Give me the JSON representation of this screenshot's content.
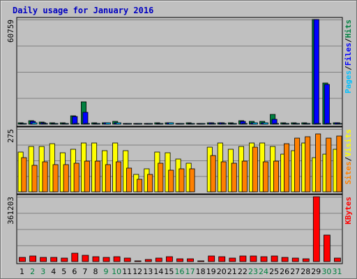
{
  "title": "Daily usage for January 2016",
  "colors": {
    "background": "#c0c0c0",
    "plot": "#c0c0c0",
    "gridline": "#808080",
    "title": "#0000c0",
    "hits": "#008040",
    "files": "#0000ff",
    "pages": "#00c0ff",
    "visits": "#ffff00",
    "sites": "#ff8000",
    "kbytes": "#ff0000",
    "weekday_label": "#000000",
    "weekend_label": "#008040"
  },
  "chart_data": [
    {
      "type": "bar",
      "name": "hits-files-pages",
      "ymax_label": "60759",
      "ylim": [
        0,
        60759
      ],
      "legend": [
        "Pages",
        "/",
        "Files",
        "/",
        "Hits"
      ],
      "categories": [
        "1",
        "2",
        "3",
        "4",
        "5",
        "6",
        "7",
        "8",
        "9",
        "10",
        "11",
        "12",
        "13",
        "14",
        "15",
        "16",
        "17",
        "18",
        "19",
        "20",
        "21",
        "22",
        "23",
        "24",
        "25",
        "26",
        "27",
        "28",
        "29",
        "30",
        "31"
      ],
      "series": [
        {
          "name": "Hits",
          "values": [
            750,
            2100,
            1050,
            900,
            900,
            5000,
            13000,
            900,
            1000,
            1500,
            600,
            600,
            600,
            700,
            900,
            600,
            700,
            600,
            900,
            1000,
            900,
            2100,
            1500,
            1500,
            5500,
            900,
            900,
            750,
            60759,
            24000,
            900
          ]
        },
        {
          "name": "Files",
          "values": [
            600,
            1500,
            750,
            600,
            600,
            4500,
            6800,
            600,
            750,
            1000,
            450,
            450,
            450,
            500,
            750,
            450,
            500,
            450,
            750,
            750,
            600,
            1700,
            1000,
            1000,
            3000,
            600,
            600,
            600,
            60759,
            23000,
            750
          ]
        },
        {
          "name": "Pages",
          "values": [
            300,
            1000,
            450,
            450,
            500,
            500,
            500,
            500,
            900,
            1000,
            300,
            300,
            300,
            300,
            700,
            300,
            300,
            300,
            300,
            500,
            300,
            600,
            1000,
            1000,
            500,
            300,
            300,
            300,
            450,
            450,
            300
          ]
        }
      ]
    },
    {
      "type": "bar",
      "name": "visits-sites",
      "ymax_label": "275",
      "ylim": [
        0,
        275
      ],
      "legend": [
        "Sites",
        "/",
        "Visits"
      ],
      "categories": [
        "1",
        "2",
        "3",
        "4",
        "5",
        "6",
        "7",
        "8",
        "9",
        "10",
        "11",
        "12",
        "13",
        "14",
        "15",
        "16",
        "17",
        "18",
        "19",
        "20",
        "21",
        "22",
        "23",
        "24",
        "25",
        "26",
        "27",
        "28",
        "29",
        "30",
        "31"
      ],
      "series": [
        {
          "name": "Visits",
          "values": [
            175,
            200,
            200,
            210,
            170,
            185,
            215,
            215,
            180,
            215,
            180,
            75,
            100,
            175,
            170,
            145,
            125,
            0,
            195,
            215,
            185,
            200,
            215,
            215,
            200,
            165,
            180,
            215,
            150,
            165,
            185
          ]
        },
        {
          "name": "Sites",
          "values": [
            150,
            115,
            130,
            120,
            120,
            125,
            135,
            135,
            120,
            130,
            105,
            55,
            75,
            125,
            95,
            100,
            100,
            0,
            160,
            130,
            125,
            135,
            195,
            130,
            135,
            210,
            235,
            240,
            255,
            235,
            245
          ]
        }
      ]
    },
    {
      "type": "bar",
      "name": "kbytes",
      "ymax_label": "361203",
      "ylim": [
        0,
        361203
      ],
      "legend": [
        "KBytes"
      ],
      "categories": [
        "1",
        "2",
        "3",
        "4",
        "5",
        "6",
        "7",
        "8",
        "9",
        "10",
        "11",
        "12",
        "13",
        "14",
        "15",
        "16",
        "17",
        "18",
        "19",
        "20",
        "21",
        "22",
        "23",
        "24",
        "25",
        "26",
        "27",
        "28",
        "29",
        "30",
        "31"
      ],
      "weekend_days": [
        "2",
        "3",
        "9",
        "10",
        "16",
        "17",
        "23",
        "24",
        "30",
        "31"
      ],
      "series": [
        {
          "name": "KBytes",
          "values": [
            22000,
            32000,
            22000,
            25000,
            20000,
            45000,
            34000,
            28000,
            24000,
            27000,
            18000,
            5000,
            10000,
            20000,
            28000,
            15000,
            16000,
            3000,
            30000,
            26000,
            18000,
            30000,
            33000,
            28000,
            33000,
            22000,
            20000,
            15000,
            361203,
            148000,
            20000
          ]
        }
      ]
    }
  ]
}
